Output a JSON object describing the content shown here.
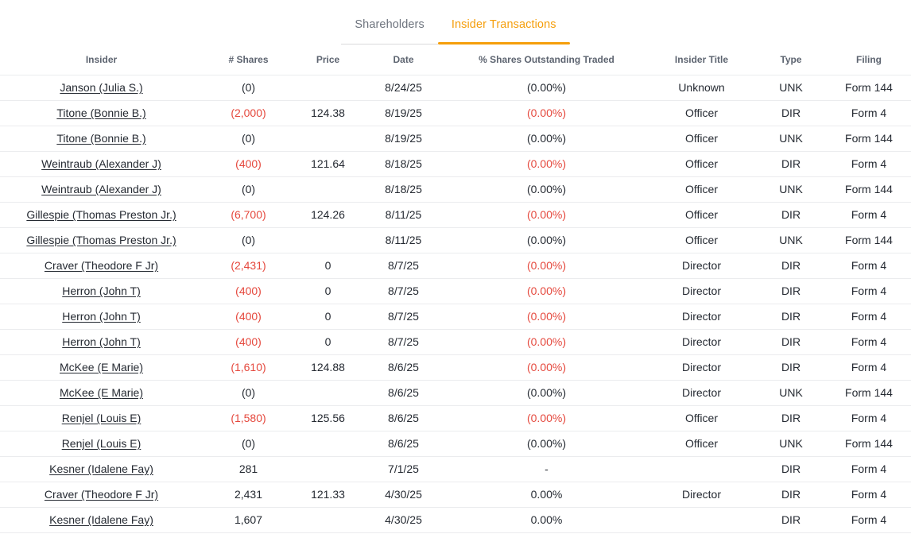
{
  "colors": {
    "accent": "#F59E0B",
    "negative": "#E5483D"
  },
  "tabs": [
    {
      "label": "Shareholders",
      "active": false
    },
    {
      "label": "Insider Transactions",
      "active": true
    }
  ],
  "table": {
    "columns": [
      "Insider",
      "# Shares",
      "Price",
      "Date",
      "% Shares Outstanding Traded",
      "Insider Title",
      "Type",
      "Filing"
    ],
    "keys": [
      "insider",
      "shares",
      "price",
      "date",
      "pct",
      "title",
      "type",
      "filing"
    ],
    "rows": [
      {
        "insider": "Janson (Julia S.)",
        "shares": "(0)",
        "price": "",
        "date": "8/24/25",
        "pct": "(0.00%)",
        "title": "Unknown",
        "type": "UNK",
        "filing": "Form 144",
        "negative": false
      },
      {
        "insider": "Titone (Bonnie B.)",
        "shares": "(2,000)",
        "price": "124.38",
        "date": "8/19/25",
        "pct": "(0.00%)",
        "title": "Officer",
        "type": "DIR",
        "filing": "Form 4",
        "negative": true
      },
      {
        "insider": "Titone (Bonnie B.)",
        "shares": "(0)",
        "price": "",
        "date": "8/19/25",
        "pct": "(0.00%)",
        "title": "Officer",
        "type": "UNK",
        "filing": "Form 144",
        "negative": false
      },
      {
        "insider": "Weintraub (Alexander J)",
        "shares": "(400)",
        "price": "121.64",
        "date": "8/18/25",
        "pct": "(0.00%)",
        "title": "Officer",
        "type": "DIR",
        "filing": "Form 4",
        "negative": true
      },
      {
        "insider": "Weintraub (Alexander J)",
        "shares": "(0)",
        "price": "",
        "date": "8/18/25",
        "pct": "(0.00%)",
        "title": "Officer",
        "type": "UNK",
        "filing": "Form 144",
        "negative": false
      },
      {
        "insider": "Gillespie (Thomas Preston Jr.)",
        "shares": "(6,700)",
        "price": "124.26",
        "date": "8/11/25",
        "pct": "(0.00%)",
        "title": "Officer",
        "type": "DIR",
        "filing": "Form 4",
        "negative": true
      },
      {
        "insider": "Gillespie (Thomas Preston Jr.)",
        "shares": "(0)",
        "price": "",
        "date": "8/11/25",
        "pct": "(0.00%)",
        "title": "Officer",
        "type": "UNK",
        "filing": "Form 144",
        "negative": false
      },
      {
        "insider": "Craver (Theodore F Jr)",
        "shares": "(2,431)",
        "price": "0",
        "date": "8/7/25",
        "pct": "(0.00%)",
        "title": "Director",
        "type": "DIR",
        "filing": "Form 4",
        "negative": true
      },
      {
        "insider": "Herron (John T)",
        "shares": "(400)",
        "price": "0",
        "date": "8/7/25",
        "pct": "(0.00%)",
        "title": "Director",
        "type": "DIR",
        "filing": "Form 4",
        "negative": true
      },
      {
        "insider": "Herron (John T)",
        "shares": "(400)",
        "price": "0",
        "date": "8/7/25",
        "pct": "(0.00%)",
        "title": "Director",
        "type": "DIR",
        "filing": "Form 4",
        "negative": true
      },
      {
        "insider": "Herron (John T)",
        "shares": "(400)",
        "price": "0",
        "date": "8/7/25",
        "pct": "(0.00%)",
        "title": "Director",
        "type": "DIR",
        "filing": "Form 4",
        "negative": true
      },
      {
        "insider": "McKee (E Marie)",
        "shares": "(1,610)",
        "price": "124.88",
        "date": "8/6/25",
        "pct": "(0.00%)",
        "title": "Director",
        "type": "DIR",
        "filing": "Form 4",
        "negative": true
      },
      {
        "insider": "McKee (E Marie)",
        "shares": "(0)",
        "price": "",
        "date": "8/6/25",
        "pct": "(0.00%)",
        "title": "Director",
        "type": "UNK",
        "filing": "Form 144",
        "negative": false
      },
      {
        "insider": "Renjel (Louis E)",
        "shares": "(1,580)",
        "price": "125.56",
        "date": "8/6/25",
        "pct": "(0.00%)",
        "title": "Officer",
        "type": "DIR",
        "filing": "Form 4",
        "negative": true
      },
      {
        "insider": "Renjel (Louis E)",
        "shares": "(0)",
        "price": "",
        "date": "8/6/25",
        "pct": "(0.00%)",
        "title": "Officer",
        "type": "UNK",
        "filing": "Form 144",
        "negative": false
      },
      {
        "insider": "Kesner (Idalene Fay)",
        "shares": "281",
        "price": "",
        "date": "7/1/25",
        "pct": "-",
        "title": "",
        "type": "DIR",
        "filing": "Form 4",
        "negative": false
      },
      {
        "insider": "Craver (Theodore F Jr)",
        "shares": "2,431",
        "price": "121.33",
        "date": "4/30/25",
        "pct": "0.00%",
        "title": "Director",
        "type": "DIR",
        "filing": "Form 4",
        "negative": false
      },
      {
        "insider": "Kesner (Idalene Fay)",
        "shares": "1,607",
        "price": "",
        "date": "4/30/25",
        "pct": "0.00%",
        "title": "",
        "type": "DIR",
        "filing": "Form 4",
        "negative": false
      }
    ]
  }
}
